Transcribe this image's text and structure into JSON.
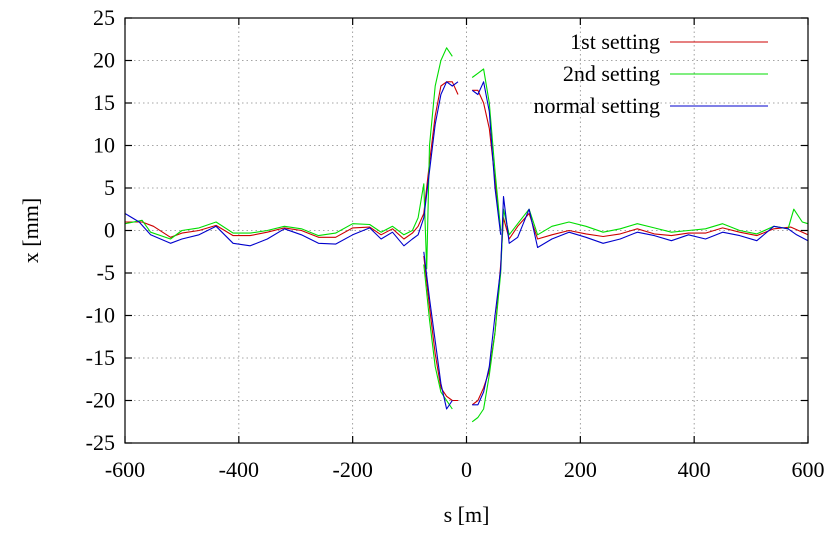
{
  "chart_data": {
    "type": "line",
    "title": "",
    "xlabel": "s [m]",
    "ylabel": "x [mm]",
    "xlim": [
      -600,
      600
    ],
    "ylim": [
      -25,
      25
    ],
    "xticks": [
      -600,
      -400,
      -200,
      0,
      200,
      400,
      600
    ],
    "yticks": [
      -25,
      -20,
      -15,
      -10,
      -5,
      0,
      5,
      10,
      15,
      20,
      25
    ],
    "grid": true,
    "legend_position": "top-right",
    "series": [
      {
        "name": "1st setting",
        "color": "#cc0000",
        "segments": [
          [
            [
              -600,
              1.0
            ],
            [
              -570,
              1.0
            ],
            [
              -550,
              0.5
            ],
            [
              -520,
              -0.8
            ],
            [
              -500,
              -0.3
            ],
            [
              -470,
              0.0
            ],
            [
              -440,
              0.6
            ],
            [
              -410,
              -0.6
            ],
            [
              -380,
              -0.6
            ],
            [
              -350,
              -0.2
            ],
            [
              -320,
              0.3
            ],
            [
              -290,
              0.0
            ],
            [
              -260,
              -0.8
            ],
            [
              -230,
              -0.8
            ],
            [
              -200,
              0.3
            ],
            [
              -170,
              0.4
            ],
            [
              -150,
              -0.5
            ],
            [
              -130,
              0.2
            ],
            [
              -110,
              -1.0
            ],
            [
              -95,
              -0.3
            ],
            [
              -85,
              0.5
            ],
            [
              -75,
              2.0
            ],
            [
              -65,
              8.0
            ],
            [
              -55,
              13.5
            ],
            [
              -45,
              17.0
            ],
            [
              -35,
              17.5
            ],
            [
              -25,
              17.5
            ],
            [
              -15,
              16.0
            ]
          ],
          [
            [
              -75,
              -3.0
            ],
            [
              -65,
              -9.0
            ],
            [
              -55,
              -14.5
            ],
            [
              -45,
              -18.5
            ],
            [
              -35,
              -19.5
            ],
            [
              -25,
              -20.0
            ],
            [
              -15,
              -20.0
            ]
          ],
          [
            [
              10,
              -20.5
            ],
            [
              20,
              -20.0
            ],
            [
              30,
              -18.5
            ],
            [
              40,
              -16.5
            ],
            [
              50,
              -12.0
            ],
            [
              60,
              -4.0
            ],
            [
              65,
              1.5
            ],
            [
              75,
              -1.0
            ],
            [
              90,
              0.5
            ],
            [
              110,
              2.0
            ],
            [
              125,
              -1.0
            ],
            [
              150,
              -0.5
            ],
            [
              180,
              0.0
            ],
            [
              210,
              -0.4
            ],
            [
              240,
              -0.7
            ],
            [
              270,
              -0.4
            ],
            [
              300,
              0.2
            ],
            [
              330,
              -0.4
            ],
            [
              360,
              -0.6
            ],
            [
              390,
              -0.3
            ],
            [
              420,
              -0.3
            ],
            [
              450,
              0.3
            ],
            [
              480,
              -0.2
            ],
            [
              510,
              -0.6
            ],
            [
              540,
              0.2
            ],
            [
              570,
              0.4
            ],
            [
              600,
              -0.5
            ]
          ],
          [
            [
              10,
              16.5
            ],
            [
              20,
              16.5
            ],
            [
              30,
              15.0
            ],
            [
              40,
              12.0
            ],
            [
              50,
              6.0
            ],
            [
              60,
              0.0
            ]
          ]
        ]
      },
      {
        "name": "2nd setting",
        "color": "#00dd00",
        "segments": [
          [
            [
              -600,
              0.8
            ],
            [
              -570,
              1.2
            ],
            [
              -555,
              -0.2
            ],
            [
              -520,
              -1.0
            ],
            [
              -500,
              0.0
            ],
            [
              -470,
              0.3
            ],
            [
              -440,
              1.0
            ],
            [
              -410,
              -0.3
            ],
            [
              -380,
              -0.3
            ],
            [
              -350,
              0.0
            ],
            [
              -320,
              0.5
            ],
            [
              -290,
              0.2
            ],
            [
              -260,
              -0.6
            ],
            [
              -230,
              -0.3
            ],
            [
              -200,
              0.8
            ],
            [
              -170,
              0.7
            ],
            [
              -150,
              -0.2
            ],
            [
              -130,
              0.5
            ],
            [
              -110,
              -0.5
            ],
            [
              -95,
              0.0
            ],
            [
              -85,
              1.5
            ],
            [
              -75,
              5.5
            ],
            [
              -70,
              -4.5
            ],
            [
              -65,
              10.0
            ],
            [
              -55,
              17.0
            ],
            [
              -45,
              20.0
            ],
            [
              -35,
              21.5
            ],
            [
              -25,
              20.5
            ]
          ],
          [
            [
              -75,
              -4.0
            ],
            [
              -65,
              -10.5
            ],
            [
              -55,
              -16.0
            ],
            [
              -45,
              -19.0
            ],
            [
              -35,
              -20.0
            ],
            [
              -25,
              -21.0
            ]
          ],
          [
            [
              10,
              -22.5
            ],
            [
              20,
              -22.0
            ],
            [
              30,
              -21.0
            ],
            [
              40,
              -17.0
            ],
            [
              50,
              -12.0
            ],
            [
              60,
              -5.0
            ],
            [
              65,
              2.5
            ],
            [
              75,
              -0.5
            ],
            [
              90,
              0.8
            ],
            [
              110,
              2.5
            ],
            [
              125,
              -0.5
            ],
            [
              150,
              0.5
            ],
            [
              180,
              1.0
            ],
            [
              210,
              0.5
            ],
            [
              240,
              -0.2
            ],
            [
              270,
              0.2
            ],
            [
              300,
              0.8
            ],
            [
              330,
              0.3
            ],
            [
              360,
              -0.2
            ],
            [
              390,
              0.0
            ],
            [
              420,
              0.2
            ],
            [
              450,
              0.8
            ],
            [
              480,
              0.0
            ],
            [
              510,
              -0.4
            ],
            [
              540,
              0.5
            ],
            [
              565,
              0.2
            ],
            [
              575,
              2.5
            ],
            [
              590,
              1.0
            ],
            [
              600,
              0.8
            ]
          ],
          [
            [
              10,
              18.0
            ],
            [
              20,
              18.5
            ],
            [
              30,
              19.0
            ],
            [
              40,
              15.0
            ],
            [
              50,
              7.0
            ],
            [
              60,
              0.0
            ]
          ]
        ]
      },
      {
        "name": "normal setting",
        "color": "#0000cc",
        "segments": [
          [
            [
              -600,
              2.0
            ],
            [
              -575,
              1.0
            ],
            [
              -555,
              -0.5
            ],
            [
              -520,
              -1.5
            ],
            [
              -500,
              -1.0
            ],
            [
              -470,
              -0.5
            ],
            [
              -440,
              0.5
            ],
            [
              -410,
              -1.5
            ],
            [
              -380,
              -1.8
            ],
            [
              -350,
              -1.0
            ],
            [
              -320,
              0.2
            ],
            [
              -290,
              -0.5
            ],
            [
              -260,
              -1.5
            ],
            [
              -230,
              -1.6
            ],
            [
              -200,
              -0.5
            ],
            [
              -170,
              0.3
            ],
            [
              -150,
              -1.0
            ],
            [
              -130,
              -0.2
            ],
            [
              -110,
              -1.8
            ],
            [
              -95,
              -1.0
            ],
            [
              -85,
              -0.5
            ],
            [
              -75,
              1.5
            ],
            [
              -65,
              7.0
            ],
            [
              -55,
              12.5
            ],
            [
              -45,
              16.0
            ],
            [
              -35,
              17.5
            ],
            [
              -25,
              17.0
            ],
            [
              -15,
              17.5
            ]
          ],
          [
            [
              -75,
              -2.5
            ],
            [
              -65,
              -8.0
            ],
            [
              -55,
              -13.0
            ],
            [
              -45,
              -18.0
            ],
            [
              -35,
              -21.0
            ],
            [
              -25,
              -20.0
            ]
          ],
          [
            [
              10,
              -20.5
            ],
            [
              20,
              -20.5
            ],
            [
              30,
              -19.0
            ],
            [
              40,
              -16.0
            ],
            [
              50,
              -10.0
            ],
            [
              60,
              -4.5
            ],
            [
              65,
              4.0
            ],
            [
              75,
              -1.5
            ],
            [
              90,
              -0.8
            ],
            [
              110,
              2.5
            ],
            [
              125,
              -2.0
            ],
            [
              150,
              -1.0
            ],
            [
              180,
              -0.2
            ],
            [
              210,
              -0.8
            ],
            [
              240,
              -1.5
            ],
            [
              270,
              -1.0
            ],
            [
              300,
              -0.2
            ],
            [
              330,
              -0.6
            ],
            [
              360,
              -1.2
            ],
            [
              390,
              -0.5
            ],
            [
              420,
              -1.0
            ],
            [
              450,
              -0.2
            ],
            [
              480,
              -0.6
            ],
            [
              510,
              -1.2
            ],
            [
              540,
              0.5
            ],
            [
              565,
              0.2
            ],
            [
              580,
              -0.5
            ],
            [
              600,
              -1.2
            ]
          ],
          [
            [
              10,
              16.5
            ],
            [
              20,
              16.0
            ],
            [
              30,
              17.5
            ],
            [
              40,
              14.0
            ],
            [
              50,
              5.0
            ],
            [
              60,
              -0.5
            ]
          ]
        ]
      }
    ]
  }
}
